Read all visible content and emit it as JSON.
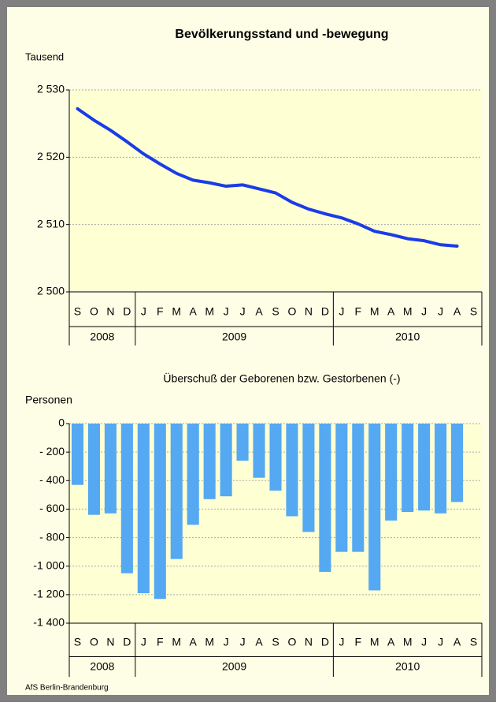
{
  "chart_data": [
    {
      "type": "line",
      "title": "Bevölkerungsstand und -bewegung",
      "y_label": "Tausend",
      "categories": [
        "S",
        "O",
        "N",
        "D",
        "J",
        "F",
        "M",
        "A",
        "M",
        "J",
        "J",
        "A",
        "S",
        "O",
        "N",
        "D",
        "J",
        "F",
        "M",
        "A",
        "M",
        "J",
        "J",
        "A",
        "S"
      ],
      "years": [
        "2008",
        null,
        null,
        null,
        "2009",
        null,
        null,
        null,
        null,
        null,
        null,
        null,
        null,
        null,
        null,
        null,
        "2010",
        null,
        null,
        null,
        null,
        null,
        null,
        null,
        null
      ],
      "values": [
        2527.2,
        2525.5,
        2524.0,
        2522.3,
        2520.5,
        2519.0,
        2517.6,
        2516.6,
        2516.2,
        2515.7,
        2515.9,
        2515.3,
        2514.7,
        2513.3,
        2512.3,
        2511.6,
        2511.0,
        2510.1,
        2509.0,
        2508.5,
        2507.9,
        2507.6,
        2507.0,
        2506.8,
        null
      ],
      "color": "#1a3ce6",
      "ylim": [
        2500,
        2530
      ],
      "yticks": [
        {
          "value": 2500,
          "label": "2 500"
        },
        {
          "value": 2510,
          "label": "2 510"
        },
        {
          "value": 2520,
          "label": "2 520"
        },
        {
          "value": 2530,
          "label": "2 530"
        }
      ],
      "grid": true
    },
    {
      "type": "bar",
      "title": "Überschuß der Geborenen bzw. Gestorbenen (-)",
      "y_label": "Personen",
      "categories": [
        "S",
        "O",
        "N",
        "D",
        "J",
        "F",
        "M",
        "A",
        "M",
        "J",
        "J",
        "A",
        "S",
        "O",
        "N",
        "D",
        "J",
        "F",
        "M",
        "A",
        "M",
        "J",
        "J",
        "A",
        "S"
      ],
      "years": [
        "2008",
        null,
        null,
        null,
        "2009",
        null,
        null,
        null,
        null,
        null,
        null,
        null,
        null,
        null,
        null,
        null,
        "2010",
        null,
        null,
        null,
        null,
        null,
        null,
        null,
        null
      ],
      "values": [
        -430,
        -640,
        -630,
        -1050,
        -1190,
        -1230,
        -950,
        -710,
        -530,
        -510,
        -260,
        -380,
        -470,
        -650,
        -760,
        -1040,
        -900,
        -900,
        -1170,
        -680,
        -620,
        -610,
        -630,
        -550,
        null
      ],
      "color": "#55a8f2",
      "ylim": [
        -1400,
        0
      ],
      "yticks": [
        {
          "value": -1400,
          "label": "-1 400"
        },
        {
          "value": -1200,
          "label": "-1 200"
        },
        {
          "value": -1000,
          "label": "-1 000"
        },
        {
          "value": -800,
          "label": "- 800"
        },
        {
          "value": -600,
          "label": "- 600"
        },
        {
          "value": -400,
          "label": "- 400"
        },
        {
          "value": -200,
          "label": "- 200"
        },
        0
      ],
      "grid": true
    }
  ],
  "source": "AfS Berlin-Brandenburg"
}
